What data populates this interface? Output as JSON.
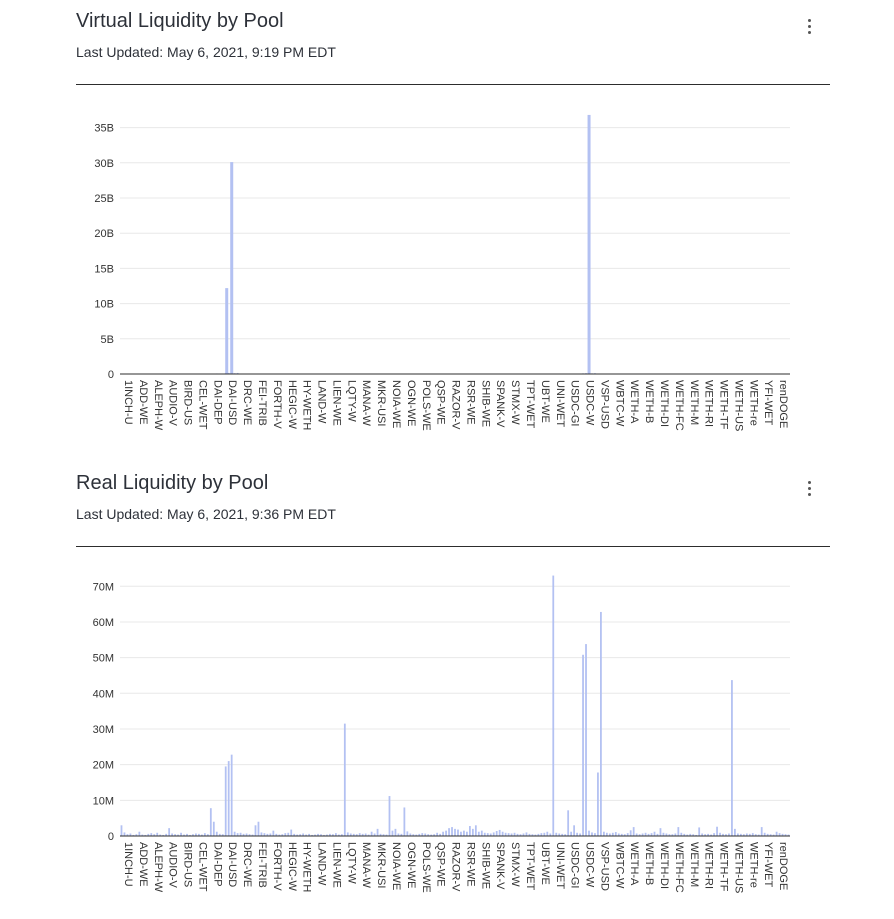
{
  "charts": [
    {
      "id": "virtual",
      "title": "Virtual Liquidity by Pool",
      "subtitle": "Last Updated: May 6, 2021, 9:19 PM EDT",
      "menu_icon": "kebab-menu-icon"
    },
    {
      "id": "real",
      "title": "Real Liquidity by Pool",
      "subtitle": "Last Updated: May 6, 2021, 9:36 PM EDT",
      "menu_icon": "kebab-menu-icon"
    }
  ],
  "colors": {
    "bar": "#b3c1f2",
    "grid": "#e8e8e8",
    "axis": "#2d2d2d",
    "divider": "#2d2d2d"
  },
  "chart_data": [
    {
      "type": "bar",
      "title": "Virtual Liquidity by Pool",
      "xlabel": "",
      "ylabel": "",
      "ylim": [
        0,
        37500000000
      ],
      "yticks": [
        0,
        5000000000,
        10000000000,
        15000000000,
        20000000000,
        25000000000,
        30000000000,
        35000000000
      ],
      "ytick_labels": [
        "0",
        "5B",
        "10B",
        "15B",
        "20B",
        "25B",
        "30B",
        "35B"
      ],
      "categories": [
        "1INCH-U",
        "ADD-WE",
        "ALEPH-W",
        "AUDIO-V",
        "BIRD-US",
        "CEL-WET",
        "DAI-DEP",
        "DAI-USD",
        "DRC-WE",
        "FEI-TRIB",
        "FORTH-V",
        "HEGIC-W",
        "HY-WETH",
        "LAND-W",
        "LIEN-WE",
        "LQTY-W",
        "MANA-W",
        "MKR-USI",
        "NOIA-WE",
        "OGN-WE",
        "POLS-WE",
        "QSP-WE",
        "RAZOR-V",
        "RSR-WE",
        "SHIB-WE",
        "SPANK-V",
        "STMX-W",
        "TPT-WET",
        "UBT-WE",
        "UNI-WET",
        "USDC-GI",
        "USDC-W",
        "VSP-USD",
        "WBTC-W",
        "WETH-A",
        "WETH-B",
        "WETH-DI",
        "WETH-FC",
        "WETH-M",
        "WETH-RI",
        "WETH-TF",
        "WETH-US",
        "WETH-re",
        "YFI-WET",
        "renDOGE"
      ],
      "values": [
        40000000,
        20000000,
        30000000,
        15000000,
        10000000,
        20000000,
        80000000,
        150000000,
        50000000,
        40000000,
        60000000,
        30000000,
        10000000,
        20000000,
        15000000,
        30000000,
        20000000,
        25000000,
        20000000,
        35000000,
        15000000,
        20000000,
        30000000,
        20000000,
        25000000,
        20000000,
        15000000,
        25000000,
        30000000,
        20000000,
        40000000,
        120000000,
        60000000,
        40000000,
        25000000,
        15000000,
        20000000,
        15000000,
        20000000,
        20000000,
        15000000,
        30000000,
        20000000,
        25000000,
        20000000
      ],
      "peaks": [
        {
          "label_index": 7,
          "offset": 0,
          "value": 12200000000
        },
        {
          "label_index": 7,
          "offset": 1,
          "value": 30100000000
        },
        {
          "label_index": 31,
          "offset": 1,
          "value": 36800000000
        }
      ]
    },
    {
      "type": "bar",
      "title": "Real Liquidity by Pool",
      "xlabel": "",
      "ylabel": "",
      "ylim": [
        0,
        74000000
      ],
      "yticks": [
        0,
        10000000,
        20000000,
        30000000,
        40000000,
        50000000,
        60000000,
        70000000
      ],
      "ytick_labels": [
        "0",
        "10M",
        "20M",
        "30M",
        "40M",
        "50M",
        "60M",
        "70M"
      ],
      "categories": [
        "1INCH-U",
        "ADD-WE",
        "ALEPH-W",
        "AUDIO-V",
        "BIRD-US",
        "CEL-WET",
        "DAI-DEP",
        "DAI-USD",
        "DRC-WE",
        "FEI-TRIB",
        "FORTH-V",
        "HEGIC-W",
        "HY-WETH",
        "LAND-W",
        "LIEN-WE",
        "LQTY-W",
        "MANA-W",
        "MKR-USI",
        "NOIA-WE",
        "OGN-WE",
        "POLS-WE",
        "QSP-WE",
        "RAZOR-V",
        "RSR-WE",
        "SHIB-WE",
        "SPANK-V",
        "STMX-W",
        "TPT-WET",
        "UBT-WE",
        "UNI-WET",
        "USDC-GI",
        "USDC-W",
        "VSP-USD",
        "WBTC-W",
        "WETH-A",
        "WETH-B",
        "WETH-DI",
        "WETH-FC",
        "WETH-M",
        "WETH-RI",
        "WETH-TF",
        "WETH-US",
        "WETH-re",
        "YFI-WET",
        "renDOGE"
      ],
      "bars": [
        [
          3000000,
          1000000,
          500000,
          700000,
          300000
        ],
        [
          500000,
          1200000,
          400000,
          300000,
          600000
        ],
        [
          800000,
          500000,
          900000,
          400000,
          300000
        ],
        [
          600000,
          2200000,
          700000,
          500000,
          400000
        ],
        [
          900000,
          400000,
          600000,
          300000,
          500000
        ],
        [
          700000,
          600000,
          400000,
          800000,
          500000
        ],
        [
          7800000,
          4000000,
          1200000,
          600000,
          500000
        ],
        [
          19500000,
          21000000,
          22800000,
          1200000,
          800000
        ],
        [
          900000,
          600000,
          700000,
          500000,
          400000
        ],
        [
          3000000,
          4000000,
          1000000,
          800000,
          600000
        ],
        [
          700000,
          1500000,
          600000,
          400000,
          500000
        ],
        [
          800000,
          900000,
          1800000,
          600000,
          400000
        ],
        [
          500000,
          700000,
          400000,
          600000,
          300000
        ],
        [
          400000,
          600000,
          500000,
          300000,
          400000
        ],
        [
          600000,
          500000,
          800000,
          400000,
          500000
        ],
        [
          31500000,
          1000000,
          700000,
          600000,
          500000
        ],
        [
          800000,
          600000,
          700000,
          400000,
          1200000
        ],
        [
          700000,
          2000000,
          600000,
          500000,
          400000
        ],
        [
          11200000,
          1500000,
          2000000,
          700000,
          600000
        ],
        [
          8000000,
          1300000,
          700000,
          500000,
          400000
        ],
        [
          600000,
          800000,
          700000,
          500000,
          400000
        ],
        [
          500000,
          900000,
          600000,
          1200000,
          1500000
        ],
        [
          2200000,
          2500000,
          2000000,
          1800000,
          1200000
        ],
        [
          1500000,
          1200000,
          2800000,
          2000000,
          3000000
        ],
        [
          1200000,
          1500000,
          900000,
          800000,
          700000
        ],
        [
          1000000,
          1400000,
          1700000,
          1200000,
          900000
        ],
        [
          800000,
          700000,
          900000,
          600000,
          500000
        ],
        [
          700000,
          1000000,
          600000,
          500000,
          400000
        ],
        [
          600000,
          800000,
          900000,
          1200000,
          700000
        ],
        [
          73000000,
          900000,
          700000,
          600000,
          500000
        ],
        [
          7200000,
          1200000,
          3000000,
          900000,
          700000
        ],
        [
          50800000,
          53800000,
          1500000,
          1000000,
          800000
        ],
        [
          17800000,
          62800000,
          1200000,
          900000,
          700000
        ],
        [
          900000,
          1100000,
          700000,
          600000,
          500000
        ],
        [
          800000,
          1600000,
          2500000,
          700000,
          500000
        ],
        [
          700000,
          900000,
          600000,
          800000,
          1200000
        ],
        [
          600000,
          2200000,
          900000,
          700000,
          500000
        ],
        [
          500000,
          700000,
          2500000,
          900000,
          600000
        ],
        [
          400000,
          600000,
          500000,
          300000,
          2400000
        ],
        [
          700000,
          500000,
          600000,
          400000,
          800000
        ],
        [
          2600000,
          900000,
          600000,
          500000,
          700000
        ],
        [
          43700000,
          2000000,
          700000,
          600000,
          500000
        ],
        [
          700000,
          600000,
          800000,
          500000,
          400000
        ],
        [
          2500000,
          900000,
          600000,
          500000,
          400000
        ],
        [
          1200000,
          800000,
          600000,
          500000,
          400000
        ]
      ]
    }
  ]
}
